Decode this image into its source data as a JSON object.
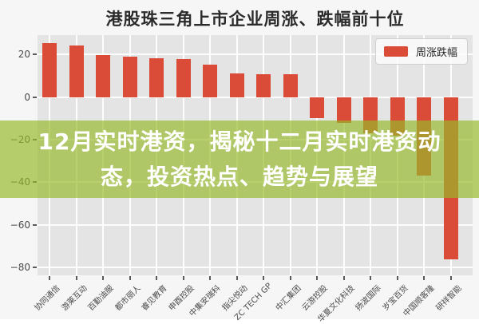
{
  "title": "港股珠三角上市企业周涨、跌幅前十位",
  "legend": {
    "label": "周涨跌幅"
  },
  "banner": {
    "line1": "12月实时港资，揭秘十二月实时港资动",
    "line2": "态，投资热点、趋势与展望"
  },
  "colors": {
    "bar": "#DB4C38",
    "banner_bg": "#97B92A",
    "banner_bg_opacity": "0.68",
    "banner_text": "#FFFFFF",
    "plot_bg": "#E4E4E5",
    "figure_bg": "#F6F6F6",
    "grid": "#FFFFFF",
    "tick_text": "#4A4A4A",
    "title_text": "#2B2B2B"
  },
  "chart_data": {
    "type": "bar",
    "title": "港股珠三角上市企业周涨、跌幅前十位",
    "series_name": "周涨跌幅",
    "categories": [
      "协同通信",
      "游莱互动",
      "百勤油服",
      "都市丽人",
      "睿见教育",
      "申酉控股",
      "中集安瑞科",
      "指尖悦动",
      "ZC TECH GP",
      "中汇集团",
      "云游控股",
      "华夏文化科技",
      "扬波国际",
      "岁宝百货",
      "中国顺客隆",
      "研祥智能"
    ],
    "values": [
      25.4,
      24.3,
      19.8,
      19.2,
      18.3,
      17.8,
      15.2,
      11.2,
      10.8,
      10.6,
      -10.0,
      -12.2,
      -16.9,
      -18.1,
      -36.9,
      -76.3
    ],
    "xlabel": "",
    "ylabel": "",
    "yticks": [
      20,
      0,
      -20,
      -40,
      -60,
      -80
    ],
    "ylim": [
      -84,
      29
    ],
    "grid": true,
    "legend_position": "upper right"
  }
}
